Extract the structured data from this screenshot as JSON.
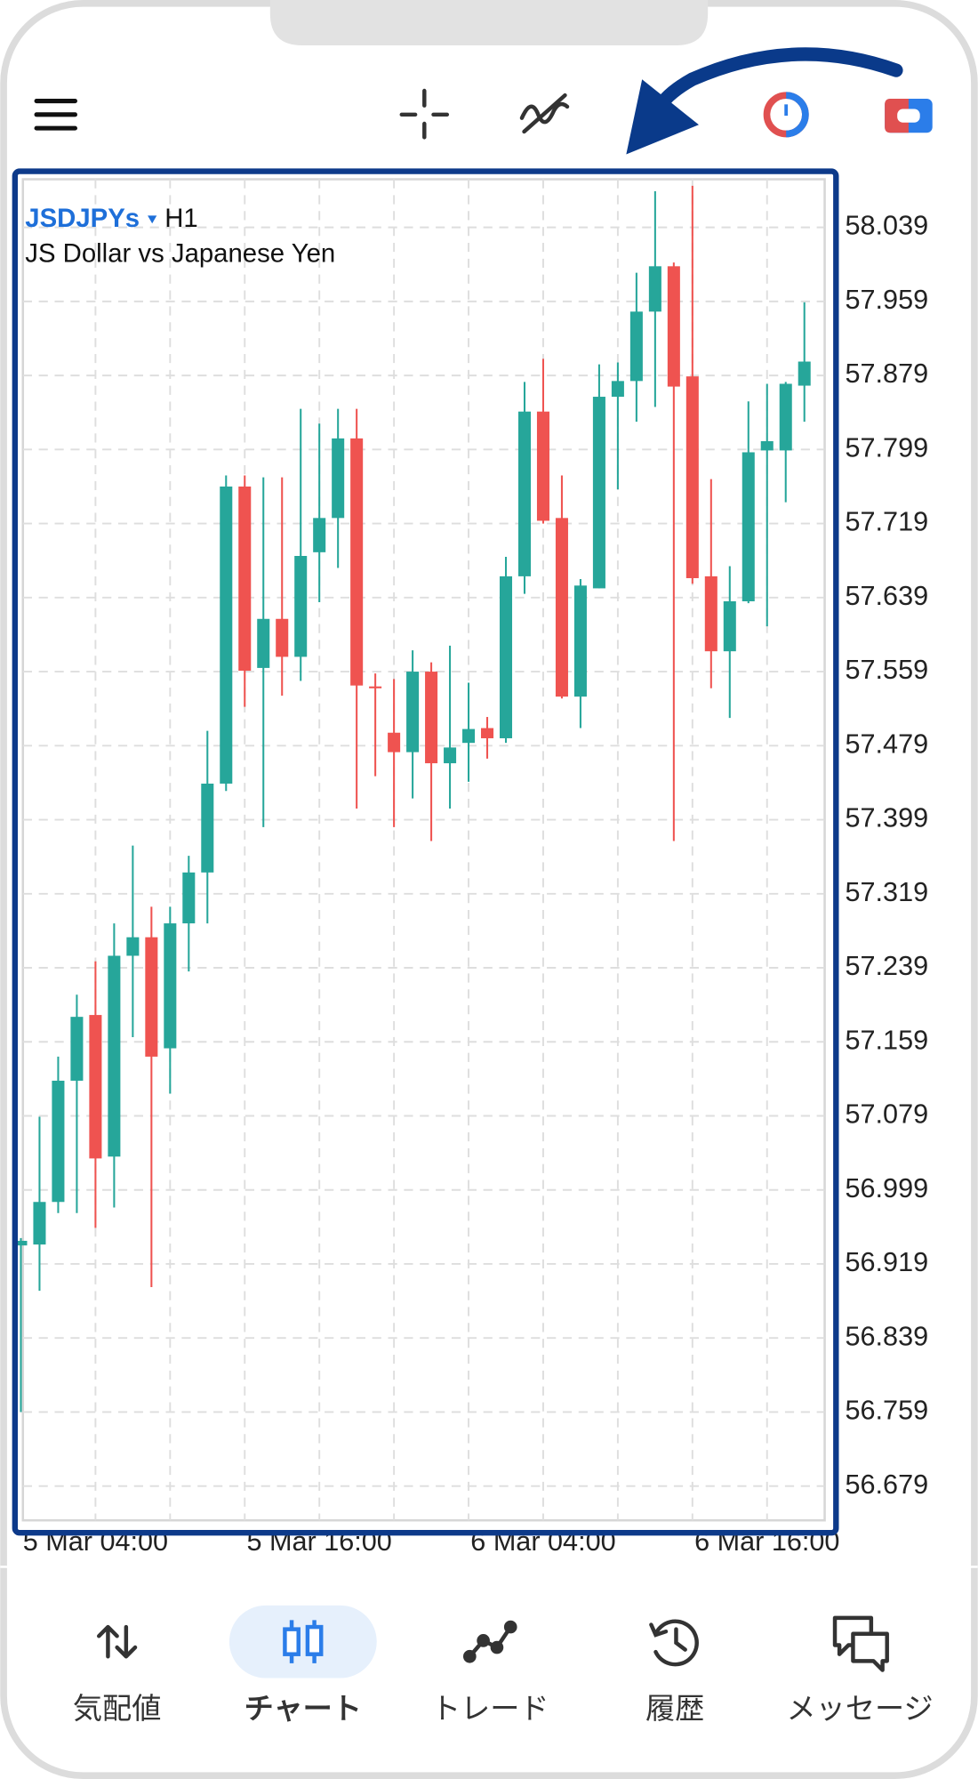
{
  "chart_data": {
    "type": "candlestick",
    "title": "JSDJPYs",
    "timeframe": "H1",
    "subtitle": "JS Dollar vs Japanese Yen",
    "categories": [
      null,
      null,
      null,
      null,
      "5 Mar 04:00",
      null,
      null,
      null,
      null,
      null,
      null,
      null,
      null,
      null,
      null,
      null,
      "5 Mar 16:00",
      null,
      null,
      null,
      null,
      null,
      null,
      null,
      null,
      null,
      null,
      null,
      "6 Mar 04:00",
      null,
      null,
      null,
      null,
      null,
      null,
      null,
      null,
      null,
      null,
      null,
      "6 Mar 16:00",
      null,
      null
    ],
    "open": [
      56.939,
      56.94,
      56.986,
      57.117,
      57.188,
      57.035,
      57.252,
      57.272,
      57.152,
      57.287,
      57.342,
      57.438,
      57.759,
      57.563,
      57.616,
      57.575,
      57.688,
      57.725,
      57.811,
      57.543,
      57.493,
      57.472,
      57.559,
      57.46,
      57.482,
      57.498,
      57.487,
      57.662,
      57.84,
      57.725,
      57.532,
      57.649,
      57.856,
      57.873,
      57.948,
      57.997,
      57.878,
      57.662,
      57.581,
      57.635,
      57.798,
      57.798,
      57.868
    ],
    "high": [
      56.947,
      57.078,
      57.143,
      57.21,
      57.246,
      57.287,
      57.371,
      57.305,
      57.305,
      57.36,
      57.495,
      57.771,
      57.771,
      57.769,
      57.769,
      57.843,
      57.827,
      57.843,
      57.843,
      57.557,
      57.551,
      57.582,
      57.569,
      57.587,
      57.547,
      57.51,
      57.683,
      57.872,
      57.897,
      57.771,
      57.659,
      57.891,
      57.893,
      57.99,
      58.078,
      58.001,
      58.084,
      57.767,
      57.673,
      57.851,
      57.87,
      57.872,
      57.958
    ],
    "low": [
      56.759,
      56.89,
      56.974,
      56.974,
      56.958,
      56.98,
      57.164,
      56.894,
      57.103,
      57.235,
      57.287,
      57.43,
      57.521,
      57.391,
      57.533,
      57.549,
      57.634,
      57.671,
      57.411,
      57.446,
      57.391,
      57.422,
      57.376,
      57.411,
      57.44,
      57.465,
      57.482,
      57.643,
      57.719,
      57.53,
      57.498,
      57.649,
      57.756,
      57.829,
      57.845,
      57.376,
      57.654,
      57.541,
      57.509,
      57.633,
      57.608,
      57.742,
      57.829
    ],
    "close": [
      56.944,
      56.986,
      57.117,
      57.186,
      57.033,
      57.252,
      57.272,
      57.143,
      57.287,
      57.342,
      57.438,
      57.759,
      57.56,
      57.616,
      57.575,
      57.684,
      57.725,
      57.811,
      57.544,
      57.541,
      57.472,
      57.559,
      57.46,
      57.477,
      57.497,
      57.487,
      57.662,
      57.84,
      57.722,
      57.532,
      57.652,
      57.856,
      57.873,
      57.948,
      57.997,
      57.867,
      57.66,
      57.581,
      57.635,
      57.796,
      57.808,
      57.87,
      57.894
    ],
    "up_color": "#26a69a",
    "down_color": "#ef5350",
    "ylim": [
      56.642,
      58.091
    ],
    "yticks": [
      58.039,
      57.959,
      57.879,
      57.799,
      57.719,
      57.639,
      57.559,
      57.479,
      57.399,
      57.319,
      57.239,
      57.159,
      57.079,
      56.999,
      56.919,
      56.839,
      56.759,
      56.679
    ],
    "grid": true
  },
  "nav": {
    "items": [
      "気配値",
      "チャート",
      "トレード",
      "履歴",
      "メッセージ"
    ],
    "active": 1
  }
}
